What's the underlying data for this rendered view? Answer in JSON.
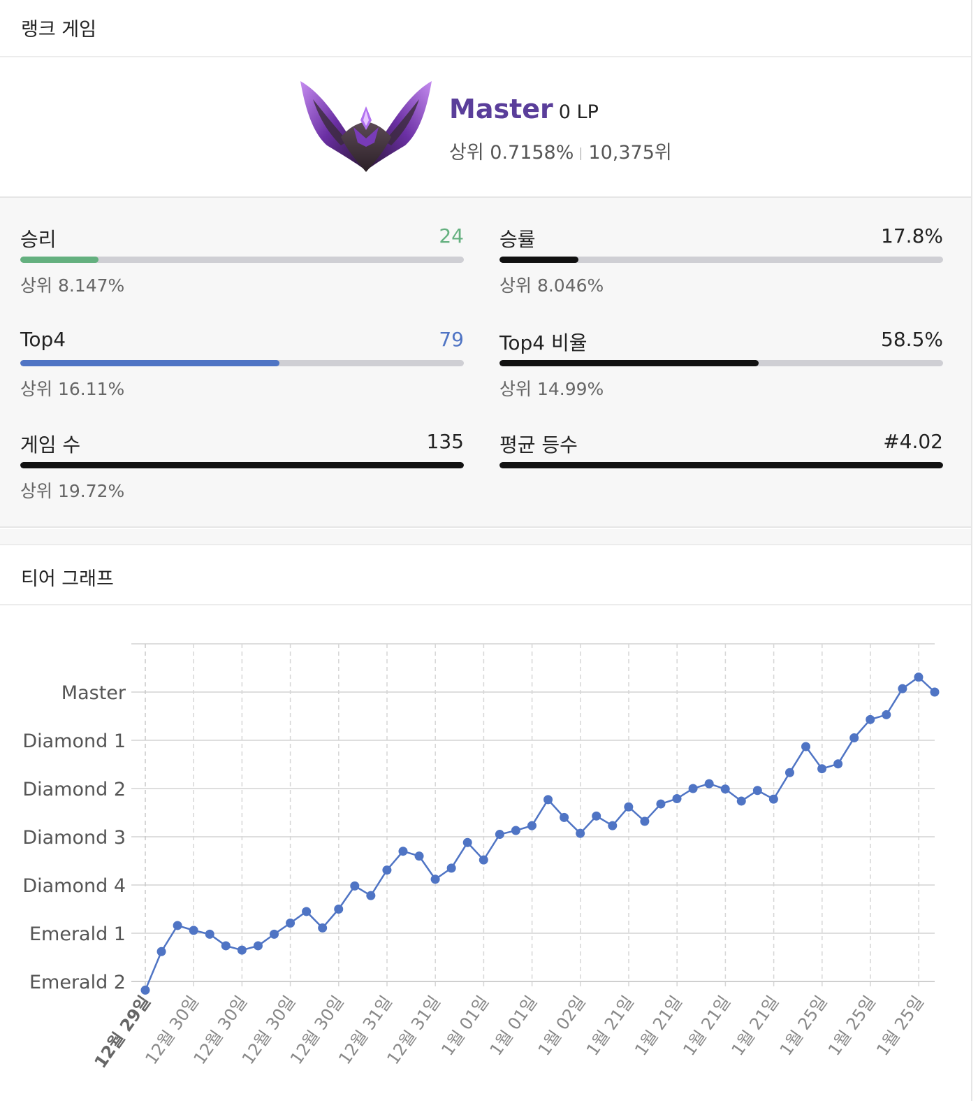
{
  "ranked": {
    "header_title": "랭크 게임",
    "tier_name": "Master",
    "lp": "0 LP",
    "top_percent": "상위 0.7158%",
    "rank": "10,375위"
  },
  "stats": [
    {
      "label": "승리",
      "value": "24",
      "sub": "상위 8.147%",
      "fill": 0.176,
      "color": "#64b07f",
      "value_color": "#64b07f"
    },
    {
      "label": "승률",
      "value": "17.8%",
      "sub": "상위 8.046%",
      "fill": 0.178,
      "color": "#111111",
      "value_color": "#222222"
    },
    {
      "label": "Top4",
      "value": "79",
      "sub": "상위 16.11%",
      "fill": 0.585,
      "color": "#4f74c4",
      "value_color": "#4f74c4"
    },
    {
      "label": "Top4 비율",
      "value": "58.5%",
      "sub": "상위 14.99%",
      "fill": 0.585,
      "color": "#111111",
      "value_color": "#222222"
    },
    {
      "label": "게임 수",
      "value": "135",
      "sub": "상위 19.72%",
      "fill": 1.0,
      "color": "#111111",
      "value_color": "#222222"
    },
    {
      "label": "평균 등수",
      "value": "#4.02",
      "sub": "",
      "fill": 1.0,
      "color": "#111111",
      "value_color": "#222222"
    }
  ],
  "tier_graph": {
    "header_title": "티어 그래프"
  },
  "chart_data": {
    "type": "line",
    "y_tick_labels": [
      "Emerald 2",
      "Emerald 1",
      "Diamond 4",
      "Diamond 3",
      "Diamond 2",
      "Diamond 1",
      "Master"
    ],
    "x_tick_labels": [
      "12월 29일",
      "12월 30일",
      "12월 30일",
      "12월 30일",
      "12월 30일",
      "12월 31일",
      "12월 31일",
      "1월 01일",
      "1월 01일",
      "1월 02일",
      "1월 21일",
      "1월 21일",
      "1월 21일",
      "1월 21일",
      "1월 25일",
      "1월 25일",
      "1월 25일"
    ],
    "y_tier_index_range": [
      0,
      7
    ],
    "grid": true,
    "series_color": "#4f74c4",
    "values": [
      -0.18,
      0.62,
      1.16,
      1.06,
      0.98,
      0.74,
      0.65,
      0.74,
      0.98,
      1.21,
      1.45,
      1.11,
      1.5,
      1.98,
      1.78,
      2.31,
      2.7,
      2.6,
      2.12,
      2.35,
      2.88,
      2.52,
      3.05,
      3.13,
      3.23,
      3.77,
      3.4,
      3.07,
      3.43,
      3.23,
      3.62,
      3.32,
      3.68,
      3.79,
      4.0,
      4.1,
      3.99,
      3.74,
      3.96,
      3.78,
      4.33,
      4.87,
      4.41,
      4.51,
      5.05,
      5.43,
      5.53,
      6.07,
      6.31,
      6.0
    ]
  },
  "colors": {
    "accent_purple": "#5a3e9a",
    "win_green": "#64b07f",
    "top4_blue": "#4f74c4"
  }
}
